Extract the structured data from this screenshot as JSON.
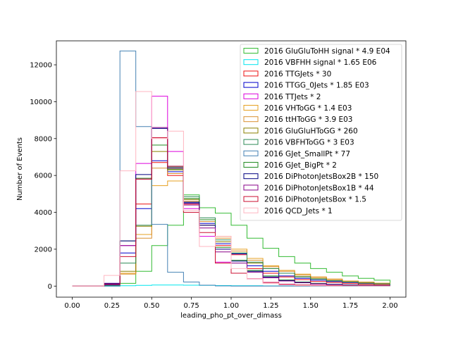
{
  "chart_data": {
    "type": "step-histogram",
    "xlabel": "leading_pho_pt_over_dimass",
    "ylabel": "Number of Events",
    "xlim": [
      -0.1,
      2.1
    ],
    "ylim": [
      -600,
      13300
    ],
    "x_ticks": [
      "0.00",
      "0.25",
      "0.50",
      "0.75",
      "1.00",
      "1.25",
      "1.50",
      "1.75",
      "2.00"
    ],
    "y_ticks": [
      "0",
      "2000",
      "4000",
      "6000",
      "8000",
      "10000",
      "12000"
    ],
    "legend_position": "upper-right",
    "bin_edges": [
      0.0,
      0.1,
      0.2,
      0.3,
      0.4,
      0.5,
      0.6,
      0.7,
      0.8,
      0.9,
      1.0,
      1.1,
      1.2,
      1.3,
      1.4,
      1.5,
      1.6,
      1.7,
      1.8,
      1.9,
      2.0
    ],
    "series": [
      {
        "name": "2016 GluGluToHH signal * 4.9 E04",
        "color": "#33bb33",
        "values": [
          0,
          0,
          0,
          150,
          800,
          2200,
          3300,
          4950,
          4250,
          3950,
          3300,
          2600,
          2050,
          1600,
          1250,
          950,
          750,
          550,
          420,
          320
        ]
      },
      {
        "name": "2016 VBFHH signal * 1.65 E06",
        "color": "#00e5ee",
        "values": [
          0,
          0,
          0,
          20,
          40,
          60,
          60,
          50,
          40,
          30,
          20,
          20,
          10,
          10,
          10,
          10,
          10,
          5,
          5,
          5
        ]
      },
      {
        "name": "2016 TTGJets * 30",
        "color": "#ee1111",
        "values": [
          0,
          0,
          50,
          700,
          4450,
          6700,
          6000,
          4450,
          3300,
          2200,
          1700,
          950,
          700,
          500,
          350,
          250,
          200,
          150,
          100,
          80
        ]
      },
      {
        "name": "2016 TTGG_0Jets * 1.85 E03",
        "color": "#0000cc",
        "values": [
          0,
          0,
          60,
          1800,
          4200,
          6800,
          6200,
          4500,
          3400,
          2300,
          1750,
          1100,
          800,
          550,
          420,
          320,
          250,
          200,
          150,
          120
        ]
      },
      {
        "name": "2016 TTJets * 2",
        "color": "#dd00dd",
        "values": [
          0,
          0,
          150,
          2200,
          6650,
          10300,
          7300,
          4200,
          2700,
          1300,
          700,
          400,
          200,
          100,
          50,
          50,
          30,
          20,
          10,
          10
        ]
      },
      {
        "name": "2016 VHToGG * 1.4 E03",
        "color": "#e6a020",
        "values": [
          0,
          0,
          30,
          700,
          2800,
          5450,
          5700,
          4550,
          3600,
          2700,
          2000,
          1500,
          1100,
          850,
          650,
          500,
          380,
          280,
          220,
          160
        ]
      },
      {
        "name": "2016 ttHToGG * 3.9 E03",
        "color": "#d99030",
        "values": [
          0,
          0,
          20,
          650,
          2600,
          6400,
          6100,
          4600,
          3500,
          2600,
          1900,
          1400,
          1050,
          800,
          600,
          470,
          360,
          270,
          210,
          150
        ]
      },
      {
        "name": "2016 GluGluHToGG * 260",
        "color": "#8b8000",
        "values": [
          0,
          0,
          20,
          800,
          3250,
          7300,
          6300,
          4700,
          3300,
          2400,
          1800,
          1250,
          950,
          700,
          520,
          400,
          300,
          230,
          170,
          120
        ]
      },
      {
        "name": "2016 VBFHToGG * 3 E03",
        "color": "#2e8b57",
        "values": [
          0,
          0,
          30,
          1250,
          3300,
          7650,
          6450,
          4850,
          3700,
          2500,
          1800,
          1300,
          950,
          700,
          500,
          380,
          290,
          220,
          160,
          120
        ]
      },
      {
        "name": "2016 GJet_SmallPt * 77",
        "color": "#4682b4",
        "values": [
          0,
          0,
          0,
          12750,
          8650,
          3350,
          750,
          220,
          50,
          10,
          0,
          0,
          0,
          0,
          0,
          0,
          0,
          0,
          0,
          0
        ]
      },
      {
        "name": "2016 GJet_BigPt * 2",
        "color": "#228b22",
        "values": [
          0,
          0,
          100,
          2450,
          5850,
          7650,
          6350,
          4750,
          3600,
          2100,
          1400,
          850,
          550,
          330,
          220,
          150,
          100,
          70,
          40,
          30
        ]
      },
      {
        "name": "2016 DiPhotonJetsBox2B * 150",
        "color": "#000080",
        "values": [
          0,
          0,
          150,
          2450,
          6050,
          8550,
          6500,
          4550,
          3300,
          2000,
          1350,
          800,
          500,
          300,
          200,
          130,
          90,
          60,
          40,
          30
        ]
      },
      {
        "name": "2016 DiPhotonJetsBox1B * 44",
        "color": "#880088",
        "values": [
          0,
          0,
          120,
          2200,
          5800,
          8600,
          6400,
          4400,
          3150,
          1850,
          1250,
          750,
          450,
          280,
          180,
          120,
          80,
          50,
          30,
          20
        ]
      },
      {
        "name": "2016 DiPhotonJetsBox * 1.5",
        "color": "#cc1133",
        "values": [
          0,
          0,
          90,
          1600,
          5800,
          8050,
          6500,
          4000,
          2900,
          1250,
          700,
          400,
          200,
          100,
          60,
          40,
          30,
          20,
          10,
          10
        ]
      },
      {
        "name": "2016 QCD_Jets * 1",
        "color": "#ffb6c1",
        "values": [
          0,
          0,
          580,
          6250,
          10550,
          8000,
          8400,
          4100,
          2150,
          2700,
          950,
          400,
          150,
          60,
          30,
          20,
          10,
          10,
          5,
          5
        ]
      }
    ]
  }
}
